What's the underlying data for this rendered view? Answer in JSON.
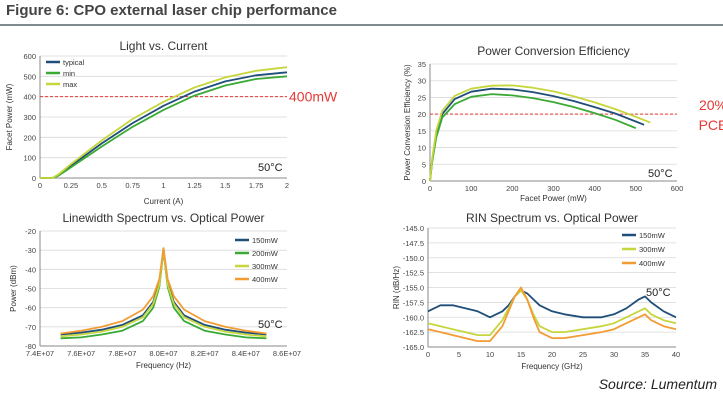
{
  "figure": {
    "title": "Figure 6: CPO external laser chip performance",
    "source": "Source: Lumentum"
  },
  "chart_data": [
    {
      "id": "light",
      "type": "line",
      "title": "Light vs. Current",
      "xlabel": "Current (A)",
      "ylabel": "Facet Power (mW)",
      "xlim": [
        0,
        2
      ],
      "ylim": [
        0,
        600
      ],
      "xticks": [
        0,
        0.25,
        0.5,
        0.75,
        1,
        1.25,
        1.5,
        1.75,
        2
      ],
      "yticks": [
        0,
        100,
        200,
        300,
        400,
        500,
        600
      ],
      "legend": "top-left",
      "annotation": "50°C",
      "reference": {
        "y": 400,
        "label": "400mW",
        "color": "#e53935"
      },
      "series": [
        {
          "name": "typical",
          "color": "#1f4e79",
          "x": [
            0,
            0.1,
            0.15,
            0.25,
            0.5,
            0.75,
            1,
            1.25,
            1.5,
            1.75,
            2
          ],
          "y": [
            0,
            0,
            15,
            60,
            170,
            270,
            355,
            425,
            475,
            505,
            520
          ]
        },
        {
          "name": "min",
          "color": "#3aaa35",
          "x": [
            0,
            0.1,
            0.15,
            0.25,
            0.5,
            0.75,
            1,
            1.25,
            1.5,
            1.75,
            2
          ],
          "y": [
            0,
            0,
            12,
            52,
            155,
            252,
            335,
            405,
            455,
            487,
            500
          ]
        },
        {
          "name": "max",
          "color": "#c6d63c",
          "x": [
            0,
            0.1,
            0.15,
            0.25,
            0.5,
            0.75,
            1,
            1.25,
            1.5,
            1.75,
            2
          ],
          "y": [
            0,
            0,
            18,
            68,
            185,
            290,
            375,
            445,
            495,
            527,
            545
          ]
        }
      ]
    },
    {
      "id": "pce",
      "type": "line",
      "title": "Power Conversion Efficiency",
      "xlabel": "Facet Power (mW)",
      "ylabel": "Power Conversion Efficiency (%)",
      "xlim": [
        0,
        600
      ],
      "ylim": [
        0,
        35
      ],
      "xticks": [
        0,
        100,
        200,
        300,
        400,
        500,
        600
      ],
      "yticks": [
        0,
        5,
        10,
        15,
        20,
        25,
        30,
        35
      ],
      "annotation": "50°C",
      "reference": {
        "y": 20,
        "label_lines": [
          "20%",
          "PCE"
        ],
        "color": "#e53935"
      },
      "series": [
        {
          "name": "typical",
          "color": "#1f4e79",
          "x": [
            0,
            5,
            15,
            30,
            60,
            100,
            150,
            200,
            250,
            300,
            350,
            400,
            450,
            500,
            520
          ],
          "y": [
            0,
            6,
            14,
            20,
            24.5,
            26.7,
            27.6,
            27.4,
            26.6,
            25.4,
            23.9,
            22.1,
            20.2,
            17.8,
            16.8
          ]
        },
        {
          "name": "min",
          "color": "#3aaa35",
          "x": [
            0,
            5,
            15,
            30,
            60,
            100,
            150,
            200,
            250,
            300,
            350,
            400,
            450,
            500
          ],
          "y": [
            0,
            5.5,
            13,
            19,
            23,
            25.2,
            26,
            25.6,
            24.8,
            23.6,
            22.1,
            20.3,
            18.3,
            15.8
          ]
        },
        {
          "name": "max",
          "color": "#c6d63c",
          "x": [
            0,
            5,
            15,
            30,
            60,
            100,
            150,
            200,
            250,
            300,
            350,
            400,
            450,
            500,
            535
          ],
          "y": [
            0,
            6.5,
            15,
            21,
            25.5,
            27.6,
            28.5,
            28.6,
            27.9,
            26.8,
            25.3,
            23.5,
            21.5,
            19.2,
            17.5
          ]
        }
      ]
    },
    {
      "id": "linewidth",
      "type": "line",
      "title": "Linewidth Spectrum vs. Optical Power",
      "xlabel": "Frequency (Hz)",
      "ylabel": "Power (dBm)",
      "xlim": [
        74000000,
        86000000
      ],
      "ylim": [
        -80,
        -20
      ],
      "xticks": [
        74000000,
        76000000,
        78000000,
        80000000,
        82000000,
        84000000,
        86000000
      ],
      "xtick_labels": [
        "7.4E+07",
        "7.6E+07",
        "7.8E+07",
        "8.0E+07",
        "8.2E+07",
        "8.4E+07",
        "8.6E+07"
      ],
      "yticks": [
        -80,
        -70,
        -60,
        -50,
        -40,
        -30,
        -20
      ],
      "legend": "top-right",
      "annotation": "50°C",
      "series": [
        {
          "name": "150mW",
          "color": "#1f4e79",
          "x": [
            75000000,
            76000000,
            77000000,
            78000000,
            79000000,
            79500000,
            79800000,
            80000000,
            80200000,
            80500000,
            81000000,
            82000000,
            83000000,
            84000000,
            85000000
          ],
          "y": [
            -74,
            -73,
            -71.5,
            -69,
            -64,
            -57,
            -47,
            -29,
            -47,
            -57,
            -64,
            -69,
            -71.5,
            -73,
            -74
          ]
        },
        {
          "name": "200mW",
          "color": "#3aaa35",
          "x": [
            75000000,
            76000000,
            77000000,
            78000000,
            79000000,
            79500000,
            79800000,
            80000000,
            80200000,
            80500000,
            81000000,
            82000000,
            83000000,
            84000000,
            85000000
          ],
          "y": [
            -76,
            -75.5,
            -74,
            -72,
            -67,
            -60,
            -49,
            -30,
            -49,
            -60,
            -67,
            -72,
            -74,
            -75.5,
            -76
          ]
        },
        {
          "name": "300mW",
          "color": "#c6d63c",
          "x": [
            75000000,
            76000000,
            77000000,
            78000000,
            79000000,
            79500000,
            79800000,
            80000000,
            80200000,
            80500000,
            81000000,
            82000000,
            83000000,
            84000000,
            85000000
          ],
          "y": [
            -75,
            -74,
            -72.5,
            -70,
            -65,
            -58,
            -48,
            -29.5,
            -48,
            -58,
            -65,
            -70,
            -72.5,
            -74,
            -75
          ]
        },
        {
          "name": "400mW",
          "color": "#f39c34",
          "x": [
            75000000,
            76000000,
            77000000,
            78000000,
            79000000,
            79500000,
            79800000,
            80000000,
            80200000,
            80500000,
            81000000,
            82000000,
            83000000,
            84000000,
            85000000
          ],
          "y": [
            -73.5,
            -72,
            -70,
            -67,
            -61,
            -54,
            -45,
            -29,
            -45,
            -54,
            -61,
            -67,
            -70,
            -72,
            -73.5
          ]
        }
      ]
    },
    {
      "id": "rin",
      "type": "line",
      "title": "RIN Spectrum vs. Optical Power",
      "xlabel": "Frequency (GHz)",
      "ylabel": "RIN (dB/Hz)",
      "xlim": [
        0,
        40
      ],
      "ylim": [
        -165,
        -145
      ],
      "xticks": [
        0,
        5,
        10,
        15,
        20,
        25,
        30,
        35,
        40
      ],
      "yticks": [
        -165,
        -162.5,
        -160,
        -157.5,
        -155,
        -152.5,
        -150,
        -147.5,
        -145
      ],
      "ytick_labels": [
        "-165.0",
        "-162.5",
        "-160.0",
        "-157.5",
        "-155.0",
        "-152.5",
        "-150.0",
        "-147.5",
        "-145.0"
      ],
      "legend": "top-right",
      "annotation": "50°C",
      "series": [
        {
          "name": "150mW",
          "color": "#1f4e79",
          "x": [
            0,
            2,
            4,
            6,
            8,
            10,
            12,
            13,
            14,
            15,
            16,
            17,
            18,
            20,
            22,
            25,
            28,
            30,
            32,
            34,
            35,
            36,
            38,
            40
          ],
          "y": [
            -159,
            -158,
            -158,
            -158.5,
            -159,
            -160,
            -159,
            -158,
            -156.5,
            -155.5,
            -156,
            -157,
            -158,
            -159,
            -159.5,
            -160,
            -160,
            -159.5,
            -158.5,
            -157,
            -156.5,
            -157.5,
            -159,
            -160
          ]
        },
        {
          "name": "300mW",
          "color": "#c6d63c",
          "x": [
            0,
            2,
            4,
            6,
            8,
            10,
            12,
            13,
            14,
            15,
            16,
            17,
            18,
            20,
            22,
            25,
            28,
            30,
            32,
            34,
            35,
            36,
            38,
            40
          ],
          "y": [
            -161,
            -161.5,
            -162,
            -162.5,
            -163,
            -163,
            -160.5,
            -158.5,
            -156.5,
            -155.5,
            -157,
            -159.5,
            -161.5,
            -162.5,
            -162.5,
            -162,
            -161.5,
            -161,
            -160,
            -159,
            -158.5,
            -159.5,
            -160.5,
            -161
          ]
        },
        {
          "name": "400mW",
          "color": "#f39c34",
          "x": [
            0,
            2,
            4,
            6,
            8,
            10,
            12,
            13,
            14,
            15,
            16,
            17,
            18,
            20,
            22,
            25,
            28,
            30,
            32,
            34,
            35,
            36,
            38,
            40
          ],
          "y": [
            -162,
            -162.5,
            -163,
            -163.5,
            -164,
            -164,
            -161.5,
            -159,
            -156.5,
            -155,
            -157,
            -160,
            -162.5,
            -163.5,
            -163.5,
            -163,
            -162.5,
            -162,
            -161,
            -160,
            -159.5,
            -160.5,
            -161.5,
            -162
          ]
        }
      ]
    }
  ]
}
